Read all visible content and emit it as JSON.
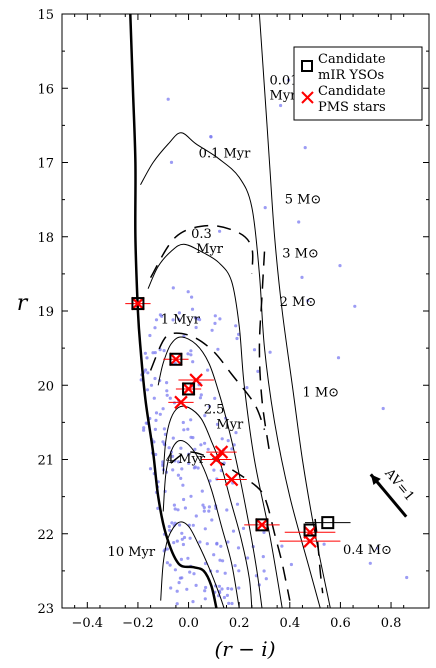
{
  "chart_data": {
    "type": "scatter",
    "xlabel": "(r − i)",
    "ylabel": "r",
    "xlim": [
      -0.5,
      0.95
    ],
    "ylim": [
      23,
      15
    ],
    "xticks": [
      -0.4,
      -0.2,
      0.0,
      0.2,
      0.4,
      0.6,
      0.8
    ],
    "xtick_labels": [
      "−0.4",
      "−0.2",
      "0.0",
      "0.2",
      "0.4",
      "0.6",
      "0.8"
    ],
    "yticks": [
      15,
      16,
      17,
      18,
      19,
      20,
      21,
      22,
      23
    ],
    "ytick_labels": [
      "15",
      "16",
      "17",
      "18",
      "19",
      "20",
      "21",
      "22",
      "23"
    ],
    "legend": {
      "position": "top-right",
      "entries": [
        {
          "label_line1": "Candidate",
          "label_line2": "mIR YSOs",
          "marker": "open-square",
          "color": "#000000"
        },
        {
          "label_line1": "Candidate",
          "label_line2": "PMS stars",
          "marker": "x",
          "color": "#ff0000"
        }
      ]
    },
    "colors": {
      "field_stars": "#7b7bf0",
      "pms": "#ff0000",
      "ysos": "#000000"
    },
    "isochrones": [
      {
        "name": "0.01 Myr",
        "points": [
          [
            0.28,
            15
          ],
          [
            0.3,
            16
          ],
          [
            0.32,
            17
          ],
          [
            0.34,
            18
          ],
          [
            0.37,
            19
          ],
          [
            0.41,
            20
          ],
          [
            0.45,
            21
          ],
          [
            0.5,
            22
          ],
          [
            0.56,
            23
          ]
        ]
      },
      {
        "name": "0.1 Myr",
        "points": [
          [
            -0.19,
            17.3
          ],
          [
            -0.14,
            17.0
          ],
          [
            -0.08,
            16.75
          ],
          [
            -0.03,
            16.6
          ],
          [
            0.03,
            16.75
          ],
          [
            0.12,
            16.95
          ],
          [
            0.2,
            17.2
          ],
          [
            0.25,
            17.6
          ],
          [
            0.28,
            18.5
          ],
          [
            0.3,
            19.5
          ],
          [
            0.34,
            20.5
          ],
          [
            0.4,
            21.5
          ],
          [
            0.48,
            22.5
          ],
          [
            0.52,
            23
          ]
        ]
      },
      {
        "name": "0.3 Myr",
        "points": [
          [
            -0.16,
            18.7
          ],
          [
            -0.12,
            18.4
          ],
          [
            -0.07,
            18.2
          ],
          [
            -0.02,
            18.1
          ],
          [
            0.05,
            18.2
          ],
          [
            0.12,
            18.35
          ],
          [
            0.17,
            18.6
          ],
          [
            0.2,
            19.2
          ],
          [
            0.22,
            20.0
          ],
          [
            0.26,
            21.0
          ],
          [
            0.32,
            22.0
          ],
          [
            0.37,
            23
          ]
        ]
      },
      {
        "name": "1 Myr",
        "points": [
          [
            -0.12,
            20.0
          ],
          [
            -0.1,
            19.7
          ],
          [
            -0.07,
            19.45
          ],
          [
            -0.03,
            19.35
          ],
          [
            0.03,
            19.45
          ],
          [
            0.08,
            19.7
          ],
          [
            0.12,
            20.1
          ],
          [
            0.16,
            20.6
          ],
          [
            0.2,
            21.2
          ],
          [
            0.24,
            21.9
          ],
          [
            0.27,
            22.5
          ],
          [
            0.29,
            23
          ]
        ]
      },
      {
        "name": "2.5 Myr",
        "points": [
          [
            -0.1,
            21.2
          ],
          [
            -0.09,
            20.75
          ],
          [
            -0.07,
            20.45
          ],
          [
            -0.04,
            20.3
          ],
          [
            0.0,
            20.3
          ],
          [
            0.05,
            20.45
          ],
          [
            0.09,
            20.75
          ],
          [
            0.13,
            21.1
          ],
          [
            0.17,
            21.6
          ],
          [
            0.21,
            22.1
          ],
          [
            0.24,
            22.6
          ],
          [
            0.25,
            23
          ]
        ]
      },
      {
        "name": "4 Myr",
        "points": [
          [
            -0.1,
            21.7
          ],
          [
            -0.09,
            21.2
          ],
          [
            -0.07,
            20.9
          ],
          [
            -0.04,
            20.75
          ],
          [
            0.0,
            20.8
          ],
          [
            0.05,
            21.05
          ],
          [
            0.09,
            21.4
          ],
          [
            0.13,
            21.9
          ],
          [
            0.17,
            22.4
          ],
          [
            0.2,
            23
          ]
        ]
      },
      {
        "name": "10 Myr",
        "points": [
          [
            -0.11,
            22.9
          ],
          [
            -0.1,
            22.4
          ],
          [
            -0.08,
            22.05
          ],
          [
            -0.04,
            21.85
          ],
          [
            0.0,
            21.9
          ],
          [
            0.04,
            22.15
          ],
          [
            0.08,
            22.45
          ],
          [
            0.12,
            22.8
          ],
          [
            0.14,
            23
          ]
        ]
      }
    ],
    "zams": {
      "points": [
        [
          -0.23,
          15.0
        ],
        [
          -0.22,
          16.0
        ],
        [
          -0.21,
          17.0
        ],
        [
          -0.21,
          18.0
        ],
        [
          -0.2,
          19.0
        ],
        [
          -0.19,
          19.5
        ],
        [
          -0.17,
          20.2
        ],
        [
          -0.14,
          20.9
        ],
        [
          -0.12,
          21.5
        ],
        [
          -0.09,
          22.0
        ],
        [
          -0.04,
          22.4
        ],
        [
          0.02,
          22.45
        ],
        [
          0.06,
          22.5
        ],
        [
          0.09,
          22.7
        ],
        [
          0.11,
          23.0
        ]
      ]
    },
    "mass_tracks": [
      {
        "name": "5 M⊙",
        "points": [
          [
            -0.15,
            18.55
          ],
          [
            -0.05,
            18.0
          ],
          [
            0.08,
            17.85
          ],
          [
            0.2,
            17.95
          ],
          [
            0.25,
            18.15
          ],
          [
            0.25,
            18.5
          ]
        ]
      },
      {
        "name": "3 M⊙",
        "points": [
          [
            -0.15,
            19.8
          ],
          [
            -0.1,
            19.4
          ],
          [
            -0.06,
            19.3
          ],
          [
            0.02,
            19.35
          ],
          [
            0.1,
            19.55
          ],
          [
            0.17,
            19.85
          ],
          [
            0.26,
            20.25
          ],
          [
            0.3,
            20.6
          ]
        ]
      },
      {
        "name": "2 M⊙",
        "points": [
          [
            0.3,
            18.2
          ],
          [
            0.29,
            18.8
          ],
          [
            0.28,
            19.5
          ],
          [
            0.29,
            20.2
          ],
          [
            0.32,
            20.9
          ]
        ]
      },
      {
        "name": "1 M⊙",
        "points": [
          [
            -0.07,
            21.05
          ],
          [
            0.0,
            20.9
          ],
          [
            0.1,
            21.0
          ],
          [
            0.2,
            21.2
          ],
          [
            0.28,
            21.4
          ],
          [
            0.31,
            21.6
          ],
          [
            0.34,
            22.0
          ],
          [
            0.37,
            22.4
          ],
          [
            0.4,
            22.9
          ]
        ]
      },
      {
        "name": "0.4 M⊙",
        "points": [
          [
            0.5,
            21.8
          ],
          [
            0.51,
            22.1
          ],
          [
            0.52,
            22.5
          ],
          [
            0.53,
            22.8
          ]
        ]
      }
    ],
    "labels": [
      {
        "text": "0.01",
        "x": 0.32,
        "y": 15.95
      },
      {
        "text": "Myr",
        "x": 0.32,
        "y": 16.15
      },
      {
        "text": "0.1 Myr",
        "x": 0.04,
        "y": 16.93
      },
      {
        "text": "5 M⊙",
        "x": 0.38,
        "y": 17.55
      },
      {
        "text": "0.3",
        "x": 0.01,
        "y": 18.02
      },
      {
        "text": "Myr",
        "x": 0.03,
        "y": 18.22
      },
      {
        "text": "3 M⊙",
        "x": 0.37,
        "y": 18.28
      },
      {
        "text": "2 M⊙",
        "x": 0.36,
        "y": 18.93
      },
      {
        "text": "1 Myr",
        "x": -0.11,
        "y": 19.17
      },
      {
        "text": "1 M⊙",
        "x": 0.45,
        "y": 20.15
      },
      {
        "text": "2.5",
        "x": 0.06,
        "y": 20.38
      },
      {
        "text": "Myr",
        "x": 0.11,
        "y": 20.58
      },
      {
        "text": "4 Myr",
        "x": -0.09,
        "y": 21.05
      },
      {
        "text": "10 Myr",
        "x": -0.32,
        "y": 22.3
      },
      {
        "text": "0.4 M⊙",
        "x": 0.61,
        "y": 22.27
      }
    ],
    "reddening_vector": {
      "label": "AV=1",
      "from": [
        0.72,
        21.2
      ],
      "to": [
        0.86,
        21.77
      ]
    },
    "pms_stars": [
      {
        "x": -0.2,
        "y": 18.9,
        "xerr": 0.05
      },
      {
        "x": -0.05,
        "y": 19.65,
        "xerr": 0.05
      },
      {
        "x": 0.03,
        "y": 19.93,
        "xerr": 0.07
      },
      {
        "x": 0.0,
        "y": 20.05,
        "xerr": 0.05
      },
      {
        "x": -0.03,
        "y": 20.23,
        "xerr": 0.05
      },
      {
        "x": 0.13,
        "y": 20.9,
        "xerr": 0.06
      },
      {
        "x": 0.11,
        "y": 21.0,
        "xerr": 0.06
      },
      {
        "x": 0.17,
        "y": 21.27,
        "xerr": 0.06
      },
      {
        "x": 0.29,
        "y": 21.88,
        "xerr": 0.07
      },
      {
        "x": 0.48,
        "y": 21.98,
        "xerr": 0.1
      },
      {
        "x": 0.48,
        "y": 22.1,
        "xerr": 0.12
      }
    ],
    "ysos": [
      {
        "x": -0.2,
        "y": 18.9
      },
      {
        "x": -0.05,
        "y": 19.65
      },
      {
        "x": 0.0,
        "y": 20.05
      },
      {
        "x": 0.29,
        "y": 21.88
      },
      {
        "x": 0.48,
        "y": 21.95
      },
      {
        "x": 0.55,
        "y": 21.85,
        "xerr": 0.09
      }
    ]
  }
}
